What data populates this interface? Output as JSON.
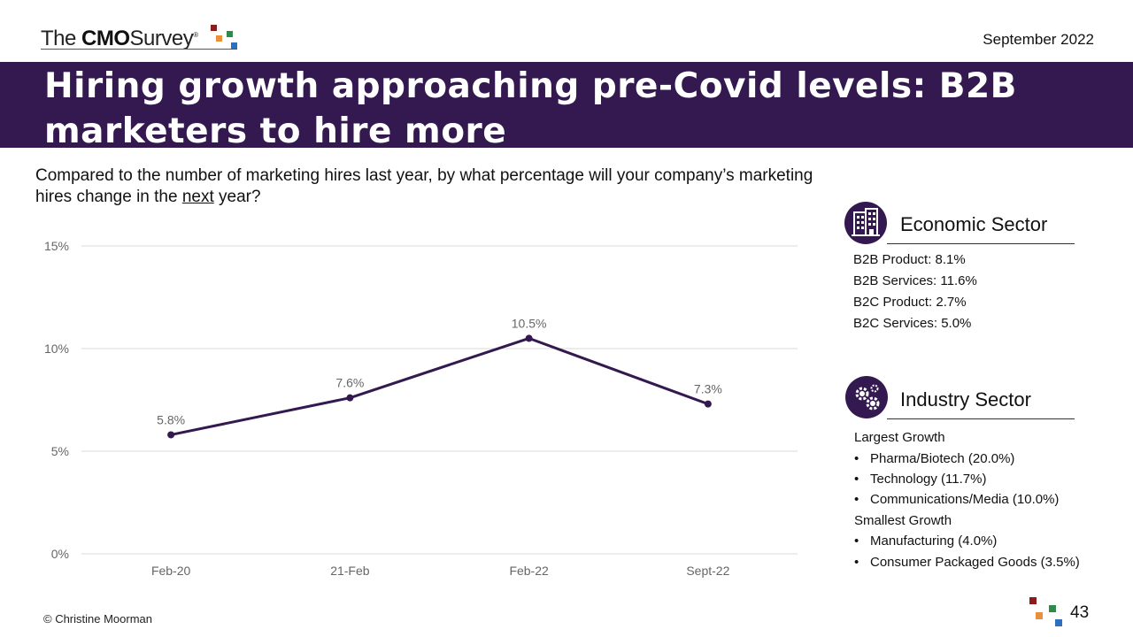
{
  "header": {
    "logo_the": "The",
    "logo_cmo": "CMO",
    "logo_survey": "Survey",
    "logo_reg": "®",
    "date": "September 2022",
    "brand_colors": [
      "#8b1c1c",
      "#e8903a",
      "#2e8b4a",
      "#2f6fbf"
    ]
  },
  "title": "Hiring growth approaching pre-Covid levels: B2B marketers to hire more",
  "question": {
    "part1": "Compared to the number of marketing hires last year, by what percentage will your company’s marketing hires change in the ",
    "underlined": "next",
    "part2": " year?"
  },
  "chart_data": {
    "type": "line",
    "categories": [
      "Feb-20",
      "21-Feb",
      "Feb-22",
      "Sept-22"
    ],
    "values": [
      5.8,
      7.6,
      10.5,
      7.3
    ],
    "data_labels": [
      "5.8%",
      "7.6%",
      "10.5%",
      "7.3%"
    ],
    "y_ticks": [
      "0%",
      "5%",
      "10%",
      "15%"
    ],
    "ylim": [
      0,
      15
    ],
    "y_tick_values": [
      0,
      5,
      10,
      15
    ],
    "grid": true,
    "line_color": "#33194f",
    "title": "",
    "xlabel": "",
    "ylabel": ""
  },
  "economic_sector": {
    "title": "Economic Sector",
    "icon": "building-icon",
    "items": [
      "B2B Product: 8.1%",
      "B2B Services: 11.6%",
      "B2C Product: 2.7%",
      "B2C Services: 5.0%"
    ]
  },
  "industry_sector": {
    "title": "Industry Sector",
    "icon": "gears-icon",
    "largest_heading": "Largest Growth",
    "largest": [
      "Pharma/Biotech (20.0%)",
      "Technology (11.7%)",
      "Communications/Media (10.0%)"
    ],
    "smallest_heading": "Smallest Growth",
    "smallest": [
      "Manufacturing (4.0%)",
      "Consumer Packaged Goods (3.5%)"
    ],
    "bullet": "•"
  },
  "footer": {
    "copyright": "© Christine Moorman",
    "page_number": "43"
  }
}
